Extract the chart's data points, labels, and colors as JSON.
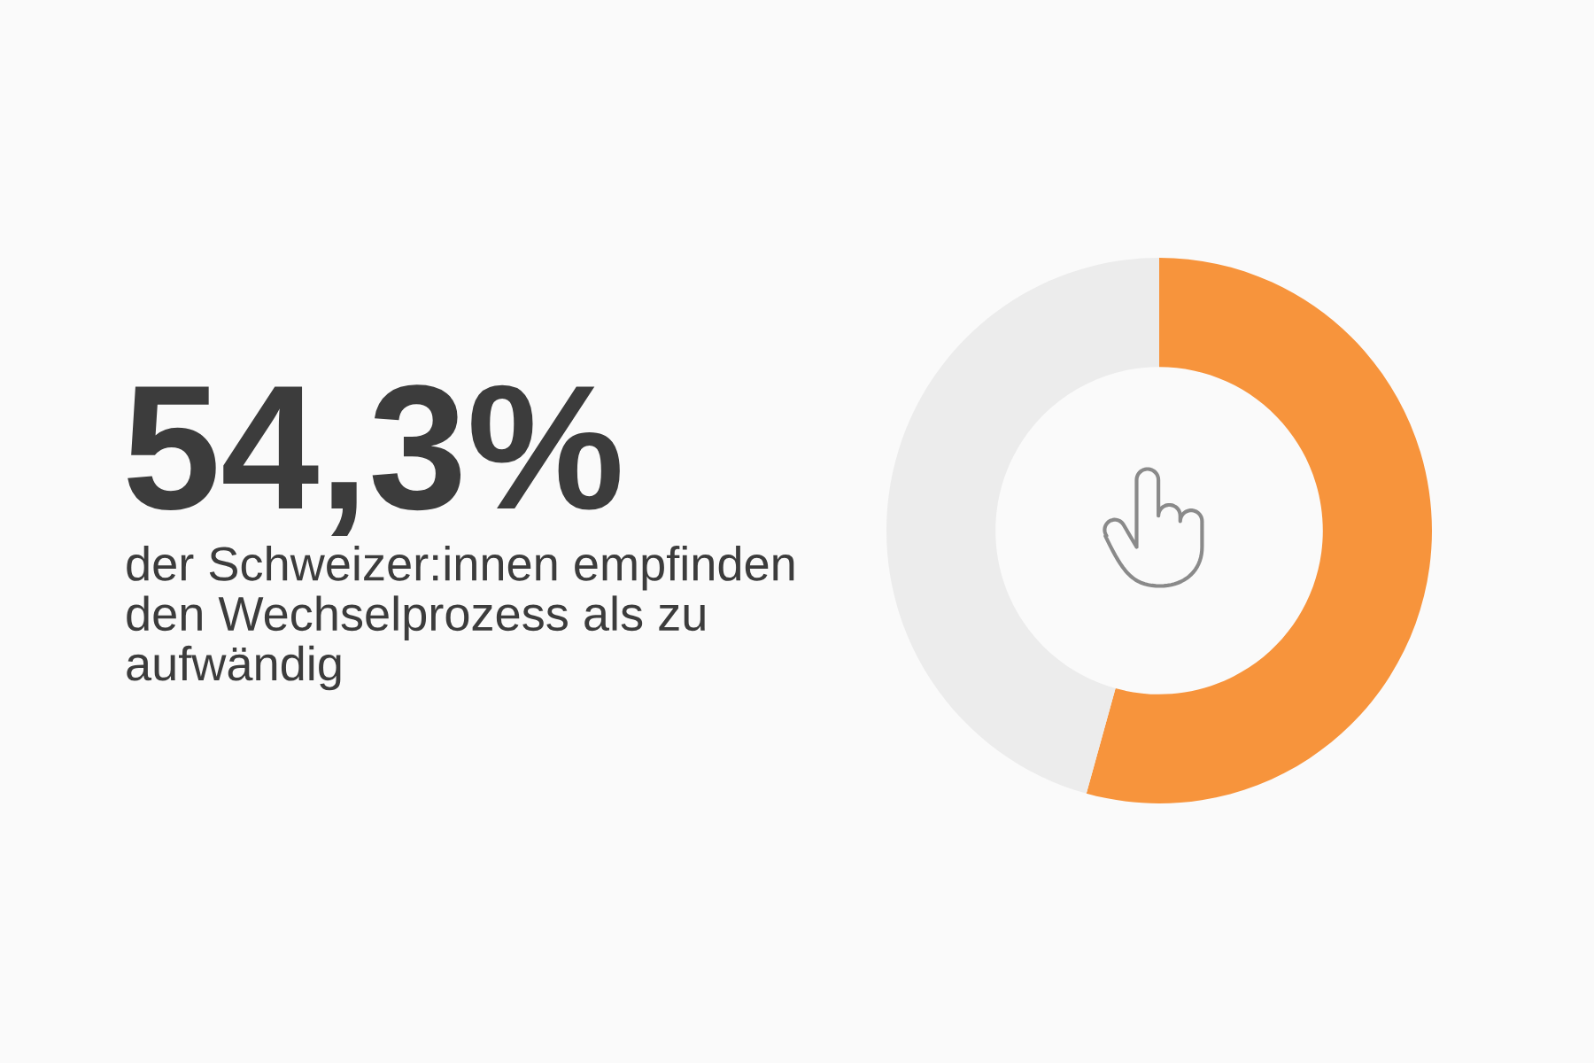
{
  "chart_data": {
    "type": "donut",
    "title": "54,3%",
    "subtitle": "der Schweizer:innen empfinden den Wechselprozess als zu aufwändig",
    "categories": [
      null,
      null
    ],
    "values": [
      54.3,
      45.7
    ],
    "colors": [
      "#f7943c",
      "#ececec"
    ]
  }
}
